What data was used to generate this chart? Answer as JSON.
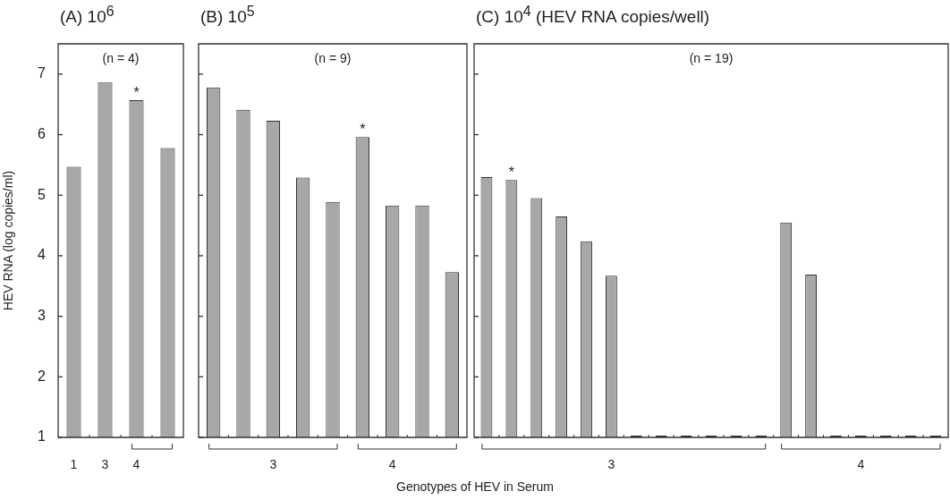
{
  "chart_data": [
    {
      "type": "bar",
      "title": "(A) 10$^{6}$",
      "ylabel": "HEV RNA (log copies/ml)",
      "annotations": [
        "(n = 4)"
      ],
      "categories": [
        "1",
        "3",
        "4",
        null
      ],
      "values": [
        5.47,
        6.86,
        6.57,
        5.78
      ],
      "value_labels": [
        null,
        null,
        "*",
        null
      ],
      "color": "#a8a8a8",
      "ylim": [
        1,
        7.5
      ],
      "yticks": [
        1,
        2,
        3,
        4,
        5,
        6,
        7
      ]
    },
    {
      "type": "bar",
      "title": "(B) 10$^{5}$",
      "xlabel": "Genotypes of HEV in Serum",
      "annotations": [
        "(n = 9)"
      ],
      "tick_labels": "x",
      "categories": [
        null,
        null,
        "3",
        null,
        null,
        null,
        "4",
        null,
        null
      ],
      "values": [
        6.78,
        6.41,
        6.23,
        5.29,
        4.89,
        5.96,
        4.83,
        4.83,
        3.73
      ],
      "value_labels": [
        null,
        null,
        null,
        null,
        null,
        "*",
        null,
        null,
        null
      ],
      "color": "#a8a8a8",
      "ylim": [
        1,
        7.5
      ],
      "yticks": [
        1,
        2,
        3,
        4,
        5,
        6,
        7
      ]
    },
    {
      "type": "bar",
      "title": "(C) 10$^{4}$ (HEV RNA copies/well)",
      "annotations": [
        "(n = 19)"
      ],
      "tick_labels": "x",
      "categories": [
        null,
        null,
        null,
        null,
        null,
        "3",
        null,
        null,
        null,
        null,
        null,
        null,
        null,
        null,
        null,
        "4",
        null,
        null,
        null
      ],
      "values": [
        5.3,
        5.25,
        4.95,
        4.65,
        4.24,
        3.67,
        1.03,
        1.03,
        1.03,
        1.03,
        1.03,
        1.03,
        4.55,
        3.69,
        1.03,
        1.03,
        1.03,
        1.03,
        1.03
      ],
      "value_labels": [
        null,
        "*",
        null,
        null,
        null,
        null,
        null,
        null,
        null,
        null,
        null,
        null,
        null,
        null,
        null,
        null,
        null,
        null,
        null
      ],
      "colors": [
        "#a8a8a8",
        "#a8a8a8",
        "#a8a8a8",
        "#a8a8a8",
        "#a8a8a8",
        "#a8a8a8",
        "#333333",
        "#333333",
        "#333333",
        "#333333",
        "#333333",
        "#333333",
        "#a8a8a8",
        "#a8a8a8",
        "#333333",
        "#333333",
        "#333333",
        "#333333",
        "#333333"
      ],
      "ylim": [
        1,
        7.5
      ],
      "yticks": [
        1,
        2,
        3,
        4,
        5,
        6,
        7
      ]
    }
  ]
}
